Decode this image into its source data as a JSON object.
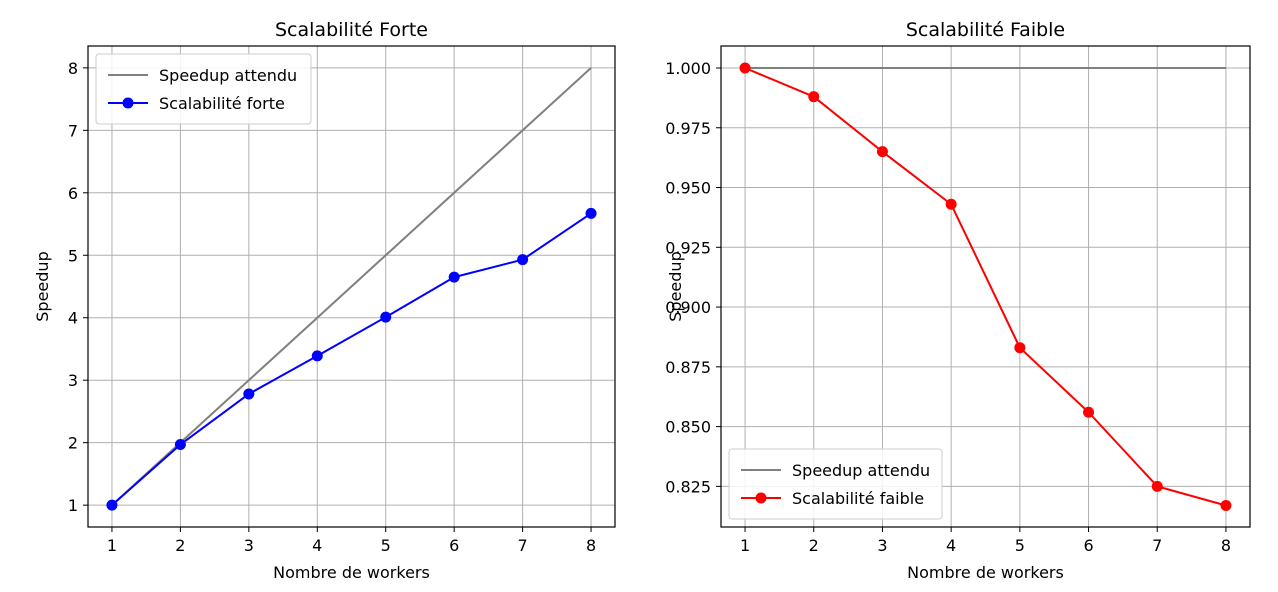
{
  "chart_data": [
    {
      "type": "line",
      "title": "Scalabilité Forte",
      "xlabel": "Nombre de workers",
      "ylabel": "Speedup",
      "x": [
        1,
        2,
        3,
        4,
        5,
        6,
        7,
        8
      ],
      "xlim": [
        0.65,
        8.35
      ],
      "ylim": [
        0.65,
        8.35
      ],
      "xticks": [
        1,
        2,
        3,
        4,
        5,
        6,
        7,
        8
      ],
      "yticks": [
        1,
        2,
        3,
        4,
        5,
        6,
        7,
        8
      ],
      "ytick_labels": [
        "1",
        "2",
        "3",
        "4",
        "5",
        "6",
        "7",
        "8"
      ],
      "grid": true,
      "legend_position": "upper-left",
      "series": [
        {
          "name": "Speedup attendu",
          "values": [
            1,
            2,
            3,
            4,
            5,
            6,
            7,
            8
          ],
          "color": "#808080",
          "marker": false
        },
        {
          "name": "Scalabilité forte",
          "values": [
            1.0,
            1.97,
            2.78,
            3.39,
            4.01,
            4.65,
            4.93,
            5.67
          ],
          "color": "#0000ff",
          "marker": true
        }
      ]
    },
    {
      "type": "line",
      "title": "Scalabilité Faible",
      "xlabel": "Nombre de workers",
      "ylabel": "Speedup",
      "x": [
        1,
        2,
        3,
        4,
        5,
        6,
        7,
        8
      ],
      "xlim": [
        0.65,
        8.35
      ],
      "ylim": [
        0.808,
        1.0092
      ],
      "xticks": [
        1,
        2,
        3,
        4,
        5,
        6,
        7,
        8
      ],
      "yticks": [
        0.825,
        0.85,
        0.875,
        0.9,
        0.925,
        0.95,
        0.975,
        1.0
      ],
      "ytick_labels": [
        "0.825",
        "0.850",
        "0.875",
        "0.900",
        "0.925",
        "0.950",
        "0.975",
        "1.000"
      ],
      "grid": true,
      "legend_position": "lower-left",
      "series": [
        {
          "name": "Speedup attendu",
          "values": [
            1,
            1,
            1,
            1,
            1,
            1,
            1,
            1
          ],
          "color": "#808080",
          "marker": false
        },
        {
          "name": "Scalabilité faible",
          "values": [
            1.0,
            0.988,
            0.965,
            0.943,
            0.883,
            0.856,
            0.825,
            0.817
          ],
          "color": "#ff0000",
          "marker": true
        }
      ]
    }
  ]
}
